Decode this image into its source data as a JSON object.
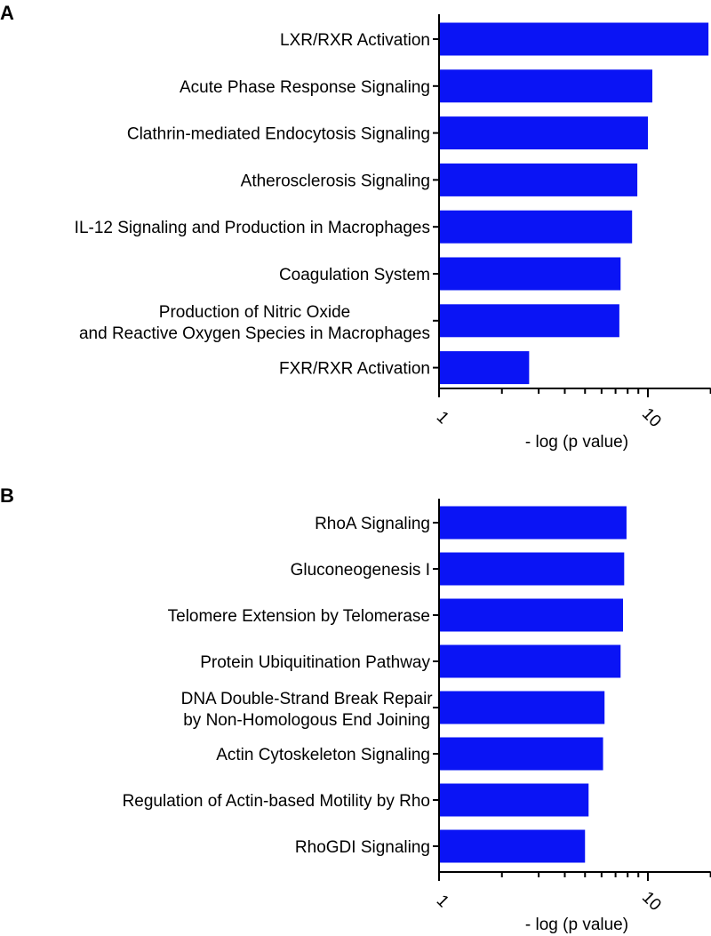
{
  "chart_data": [
    {
      "panel": "A",
      "type": "bar",
      "orientation": "horizontal",
      "xscale": "log",
      "xlim": [
        1,
        20
      ],
      "xlabel": "- log (p value)",
      "xticks_labeled": [
        "1",
        "10"
      ],
      "bar_color": "#0a14f5",
      "categories": [
        [
          "LXR/RXR Activation"
        ],
        [
          "Acute Phase Response Signaling"
        ],
        [
          "Clathrin-mediated Endocytosis Signaling"
        ],
        [
          "Atherosclerosis Signaling"
        ],
        [
          "IL-12 Signaling and Production in Macrophages"
        ],
        [
          "Coagulation System"
        ],
        [
          "Production of Nitric Oxide",
          "and Reactive Oxygen Species in Macrophages"
        ],
        [
          "FXR/RXR Activation"
        ]
      ],
      "values": [
        19.5,
        10.5,
        10.0,
        8.9,
        8.4,
        7.4,
        7.3,
        2.7
      ]
    },
    {
      "panel": "B",
      "type": "bar",
      "orientation": "horizontal",
      "xscale": "log",
      "xlim": [
        1,
        20
      ],
      "xlabel": "- log (p value)",
      "xticks_labeled": [
        "1",
        "10"
      ],
      "bar_color": "#0a14f5",
      "categories": [
        [
          "RhoA Signaling"
        ],
        [
          "Gluconeogenesis I"
        ],
        [
          "Telomere Extension by Telomerase"
        ],
        [
          "Protein Ubiquitination Pathway"
        ],
        [
          "DNA Double-Strand Break Repair",
          "by Non-Homologous End Joining"
        ],
        [
          "Actin Cytoskeleton Signaling"
        ],
        [
          "Regulation of Actin-based Motility by Rho"
        ],
        [
          "RhoGDI Signaling"
        ]
      ],
      "values": [
        7.9,
        7.7,
        7.6,
        7.4,
        6.2,
        6.1,
        5.2,
        5.0
      ]
    }
  ]
}
